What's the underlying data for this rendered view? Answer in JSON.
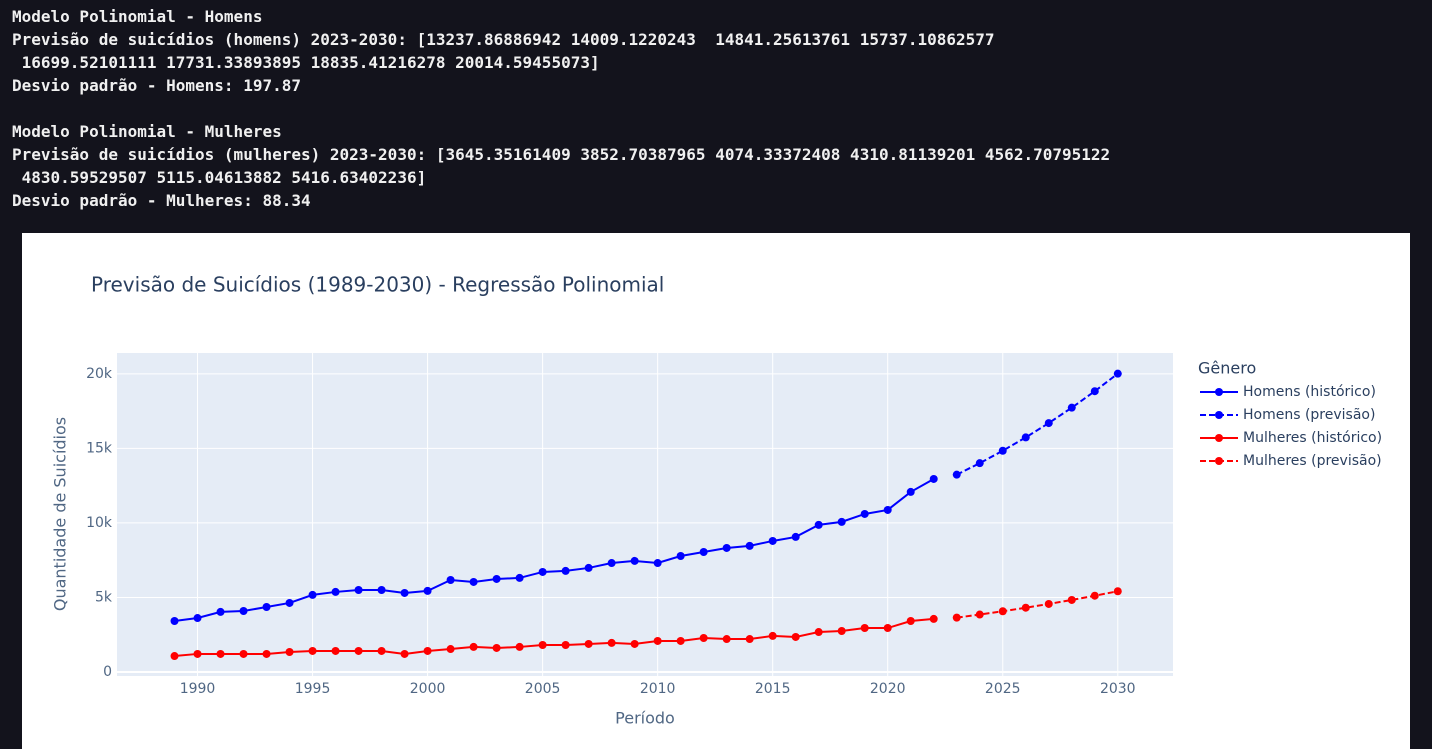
{
  "console": {
    "lines": [
      "Modelo Polinomial - Homens",
      "Previsão de suicídios (homens) 2023-2030: [13237.86886942 14009.1220243  14841.25613761 15737.10862577",
      " 16699.52101111 17731.33893895 18835.41216278 20014.59455073]",
      "Desvio padrão - Homens: 197.87",
      "",
      "Modelo Polinomial - Mulheres",
      "Previsão de suicídios (mulheres) 2023-2030: [3645.35161409 3852.70387965 4074.33372408 4310.81139201 4562.70795122",
      " 4830.59529507 5115.04613882 5416.63402236]",
      "Desvio padrão - Mulheres: 88.34"
    ]
  },
  "chart_data": {
    "type": "line",
    "title": "Previsão de Suicídios (1989-2030) - Regressão Polinomial",
    "x_label": "Período",
    "y_label": "Quantidade de Suicídios",
    "legend_title": "Gênero",
    "legend_position": "right",
    "grid": true,
    "xlim": [
      1986.5,
      2032.4
    ],
    "xticks": [
      1990,
      1995,
      2000,
      2005,
      2010,
      2015,
      2020,
      2025,
      2030
    ],
    "ylim": [
      -270,
      21400
    ],
    "yticks": [
      0,
      {
        "value": 5000,
        "label": "5k"
      },
      {
        "value": 10000,
        "label": "10k"
      },
      {
        "value": 15000,
        "label": "15k"
      },
      {
        "value": 20000,
        "label": "20k"
      }
    ],
    "series": [
      {
        "name": "Homens (histórico)",
        "color": "#0000ff",
        "dash": "solid",
        "x": [
          1989,
          1990,
          1991,
          1992,
          1993,
          1994,
          1995,
          1996,
          1997,
          1998,
          1999,
          2000,
          2001,
          2002,
          2003,
          2004,
          2005,
          2006,
          2007,
          2008,
          2009,
          2010,
          2011,
          2012,
          2013,
          2014,
          2015,
          2016,
          2017,
          2018,
          2019,
          2020,
          2021,
          2022
        ],
        "values": [
          3420,
          3620,
          4030,
          4090,
          4360,
          4630,
          5170,
          5370,
          5500,
          5500,
          5300,
          5440,
          6170,
          6040,
          6240,
          6310,
          6710,
          6780,
          6980,
          7310,
          7450,
          7310,
          7780,
          8050,
          8320,
          8460,
          8790,
          9060,
          9870,
          10070,
          10600,
          10870,
          12080,
          12950
        ]
      },
      {
        "name": "Homens (previsão)",
        "color": "#0000ff",
        "dash": "dash",
        "x": [
          2023,
          2024,
          2025,
          2026,
          2027,
          2028,
          2029,
          2030
        ],
        "values": [
          13237.86886942,
          14009.1220243,
          14841.25613761,
          15737.10862577,
          16699.52101111,
          17731.33893895,
          18835.41216278,
          20014.59455073
        ]
      },
      {
        "name": "Mulheres (histórico)",
        "color": "#ff0000",
        "dash": "solid",
        "x": [
          1989,
          1990,
          1991,
          1992,
          1993,
          1994,
          1995,
          1996,
          1997,
          1998,
          1999,
          2000,
          2001,
          2002,
          2003,
          2004,
          2005,
          2006,
          2007,
          2008,
          2009,
          2010,
          2011,
          2012,
          2013,
          2014,
          2015,
          2016,
          2017,
          2018,
          2019,
          2020,
          2021,
          2022
        ],
        "values": [
          1070,
          1210,
          1210,
          1210,
          1210,
          1340,
          1410,
          1410,
          1410,
          1410,
          1210,
          1410,
          1540,
          1680,
          1610,
          1680,
          1810,
          1810,
          1880,
          1950,
          1880,
          2080,
          2080,
          2280,
          2210,
          2210,
          2420,
          2350,
          2680,
          2750,
          2950,
          2950,
          3420,
          3560
        ]
      },
      {
        "name": "Mulheres (previsão)",
        "color": "#ff0000",
        "dash": "dash",
        "x": [
          2023,
          2024,
          2025,
          2026,
          2027,
          2028,
          2029,
          2030
        ],
        "values": [
          3645.35161409,
          3852.70387965,
          4074.33372408,
          4310.81139201,
          4562.70795122,
          4830.59529507,
          5115.04613882,
          5416.63402236
        ]
      }
    ]
  }
}
